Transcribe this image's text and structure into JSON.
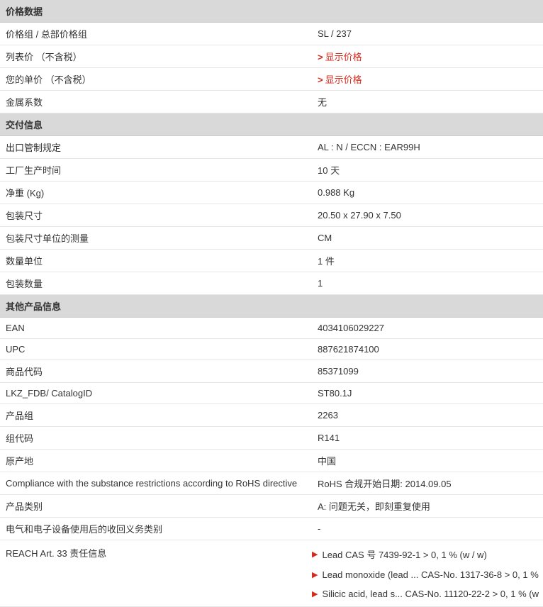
{
  "sections": {
    "price": {
      "title": "价格数据",
      "rows": [
        {
          "label": "价格组 / 总部价格组",
          "value": "SL / 237",
          "link": false
        },
        {
          "label": "列表价 （不含税）",
          "value": "显示价格",
          "link": true
        },
        {
          "label": "您的单价 （不含税）",
          "value": "显示价格",
          "link": true
        },
        {
          "label": "金属系数",
          "value": "无",
          "link": false
        }
      ]
    },
    "delivery": {
      "title": "交付信息",
      "rows": [
        {
          "label": "出口管制规定",
          "value": "AL : N / ECCN : EAR99H",
          "link": false
        },
        {
          "label": "工厂生产时间",
          "value": "10 天",
          "link": false
        },
        {
          "label": "净重 (Kg)",
          "value": "0.988 Kg",
          "link": false
        },
        {
          "label": "包装尺寸",
          "value": "20.50 x 27.90 x 7.50",
          "link": false
        },
        {
          "label": "包装尺寸单位的测量",
          "value": "CM",
          "link": false
        },
        {
          "label": "数量单位",
          "value": "1 件",
          "link": false
        },
        {
          "label": "包装数量",
          "value": "1",
          "link": false
        }
      ]
    },
    "other": {
      "title": "其他产品信息",
      "rows": [
        {
          "label": "EAN",
          "value": "4034106029227",
          "link": false
        },
        {
          "label": "UPC",
          "value": "887621874100",
          "link": false
        },
        {
          "label": "商品代码",
          "value": "85371099",
          "link": false
        },
        {
          "label": "LKZ_FDB/ CatalogID",
          "value": "ST80.1J",
          "link": false
        },
        {
          "label": "产品组",
          "value": "2263",
          "link": false
        },
        {
          "label": "组代码",
          "value": "R141",
          "link": false
        },
        {
          "label": "原产地",
          "value": "中国",
          "link": false
        },
        {
          "label": "Compliance with the substance restrictions according to RoHS directive",
          "value": "RoHS 合规开始日期: 2014.09.05",
          "link": false
        },
        {
          "label": "产品类别",
          "value": "A: 问题无关，即刻重复使用",
          "link": false
        },
        {
          "label": "电气和电子设备使用后的收回义务类别",
          "value": "-",
          "link": false
        }
      ],
      "reach_label": "REACH Art. 33 责任信息",
      "reach_items": [
        "Lead CAS 号 7439-92-1 > 0, 1 % (w / w)",
        "Lead monoxide (lead ... CAS-No. 1317-36-8 > 0, 1 %",
        "Silicic acid, lead s... CAS-No. 11120-22-2 > 0, 1 % (w"
      ]
    }
  },
  "colors": {
    "header_bg": "#d9d9d9",
    "border": "#e6e6e6",
    "link": "#d52b1e",
    "text": "#333333"
  }
}
